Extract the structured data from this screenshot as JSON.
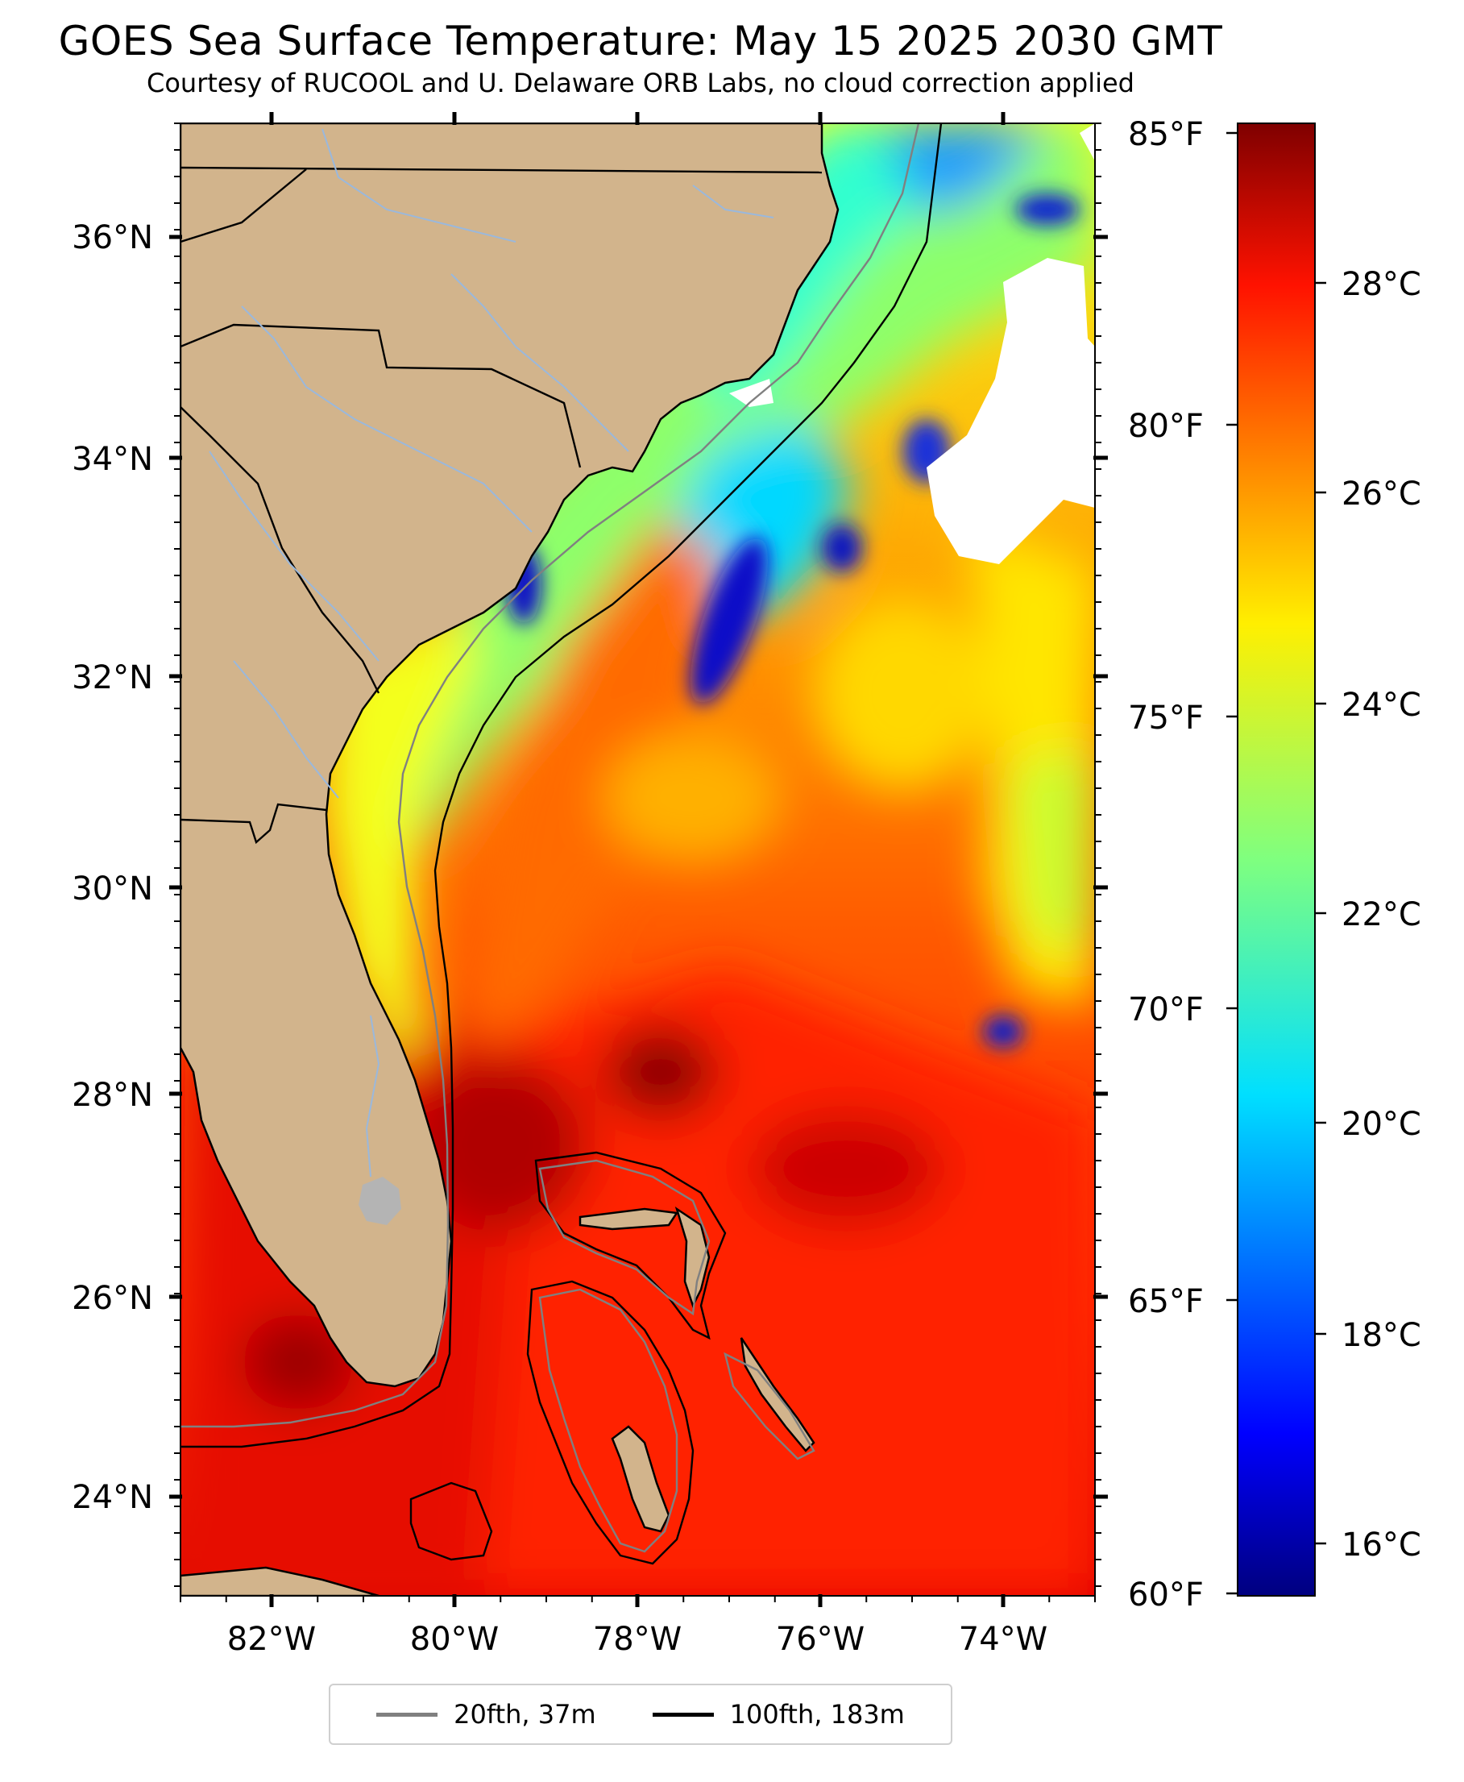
{
  "title": "GOES Sea Surface Temperature: May 15 2025 2030 GMT",
  "subtitle": "Courtesy of RUCOOL and U. Delaware ORB Labs, no cloud correction applied",
  "map": {
    "lon_range": [
      -83,
      -73
    ],
    "lat_range": [
      23.1,
      37.0
    ],
    "land_color": "#d2b48c",
    "river_color": "#9ab8dc",
    "longitude_ticks": [
      "82°W",
      "80°W",
      "78°W",
      "76°W",
      "74°W"
    ],
    "latitude_ticks": [
      "36°N",
      "34°N",
      "32°N",
      "30°N",
      "28°N",
      "26°N",
      "24°N"
    ]
  },
  "colorbar": {
    "colormap": "jet",
    "celsius_range": [
      15.6,
      29.4
    ],
    "fahrenheit_ticks": [
      "85°F",
      "80°F",
      "75°F",
      "70°F",
      "65°F",
      "60°F"
    ],
    "celsius_ticks": [
      "28°C",
      "26°C",
      "24°C",
      "22°C",
      "20°C",
      "18°C",
      "16°C"
    ]
  },
  "legend": {
    "items": [
      {
        "label": "20fth, 37m",
        "color": "#808080"
      },
      {
        "label": "100fth, 183m",
        "color": "#000000"
      }
    ]
  }
}
